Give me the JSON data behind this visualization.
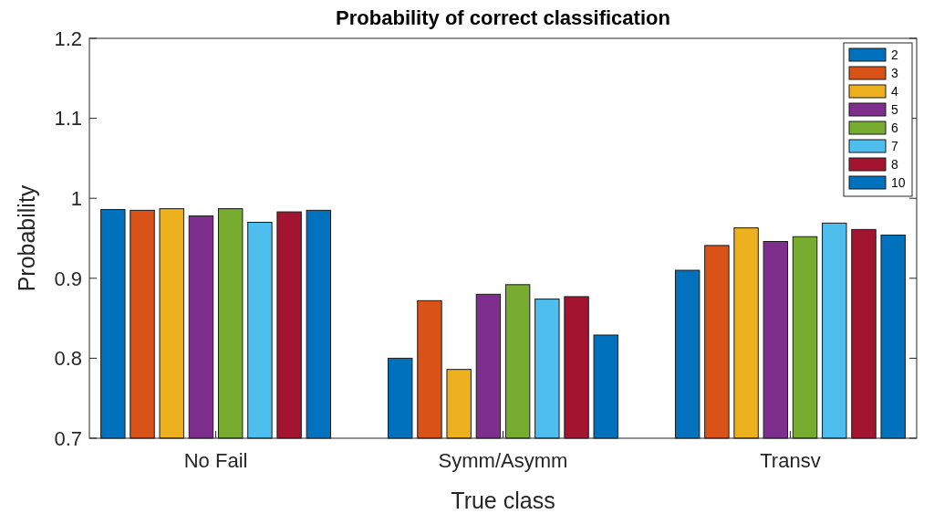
{
  "chart_data": {
    "type": "bar",
    "title": "Probability of correct classification",
    "xlabel": "True class",
    "ylabel": "Probability",
    "categories": [
      "No Fail",
      "Symm/Asymm",
      "Transv"
    ],
    "series": [
      {
        "name": "2",
        "color": "#0072bd",
        "values": [
          0.986,
          0.8,
          0.91
        ]
      },
      {
        "name": "3",
        "color": "#d95319",
        "values": [
          0.985,
          0.872,
          0.941
        ]
      },
      {
        "name": "4",
        "color": "#edb120",
        "values": [
          0.987,
          0.786,
          0.963
        ]
      },
      {
        "name": "5",
        "color": "#7e2f8e",
        "values": [
          0.978,
          0.88,
          0.946
        ]
      },
      {
        "name": "6",
        "color": "#77ac30",
        "values": [
          0.987,
          0.892,
          0.952
        ]
      },
      {
        "name": "7",
        "color": "#4dbeee",
        "values": [
          0.97,
          0.874,
          0.969
        ]
      },
      {
        "name": "8",
        "color": "#a2142f",
        "values": [
          0.983,
          0.877,
          0.961
        ]
      },
      {
        "name": "10",
        "color": "#0072bd",
        "values": [
          0.985,
          0.829,
          0.954
        ]
      }
    ],
    "ylim": [
      0.7,
      1.2
    ],
    "yticks": [
      0.7,
      0.8,
      0.9,
      1,
      1.1,
      1.2
    ],
    "legend": "top right"
  }
}
